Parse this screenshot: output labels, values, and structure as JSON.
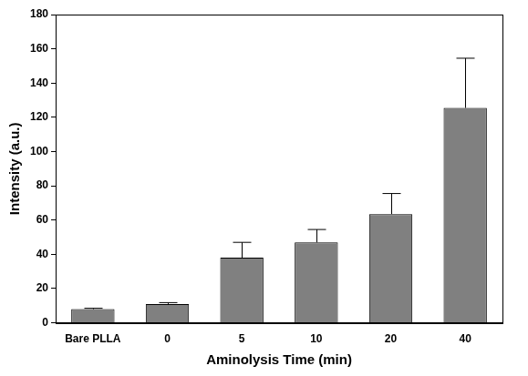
{
  "chart_data": {
    "type": "bar",
    "x_label": "Aminolysis Time (min)",
    "y_label": "Intensity (a.u.)",
    "categories": [
      "Bare PLLA",
      "0",
      "5",
      "10",
      "20",
      "40"
    ],
    "values": [
      8,
      11,
      38,
      47,
      63.5,
      125.5
    ],
    "errors": [
      0.5,
      0.8,
      9,
      7.5,
      12,
      29
    ],
    "color": "#808080",
    "ylim": [
      0,
      180
    ],
    "yticks": [
      0,
      20,
      40,
      60,
      80,
      100,
      120,
      140,
      160,
      180
    ],
    "grid": false
  }
}
